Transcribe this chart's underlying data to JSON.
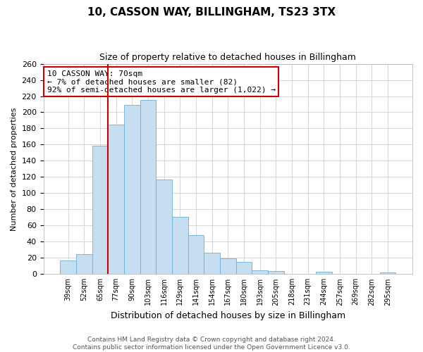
{
  "title": "10, CASSON WAY, BILLINGHAM, TS23 3TX",
  "subtitle": "Size of property relative to detached houses in Billingham",
  "xlabel": "Distribution of detached houses by size in Billingham",
  "ylabel": "Number of detached properties",
  "categories": [
    "39sqm",
    "52sqm",
    "65sqm",
    "77sqm",
    "90sqm",
    "103sqm",
    "116sqm",
    "129sqm",
    "141sqm",
    "154sqm",
    "167sqm",
    "180sqm",
    "193sqm",
    "205sqm",
    "218sqm",
    "231sqm",
    "244sqm",
    "257sqm",
    "269sqm",
    "282sqm",
    "295sqm"
  ],
  "values": [
    17,
    25,
    159,
    185,
    209,
    215,
    117,
    71,
    48,
    26,
    19,
    15,
    5,
    4,
    0,
    0,
    3,
    0,
    0,
    0,
    2
  ],
  "bar_color": "#c5dff0",
  "bar_edge_color": "#6baed6",
  "annotation_box_text": [
    "10 CASSON WAY: 70sqm",
    "← 7% of detached houses are smaller (82)",
    "92% of semi-detached houses are larger (1,022) →"
  ],
  "annotation_box_edge_color": "#cc0000",
  "vline_color": "#cc0000",
  "vline_x_index": 2.5,
  "ylim": [
    0,
    260
  ],
  "yticks": [
    0,
    20,
    40,
    60,
    80,
    100,
    120,
    140,
    160,
    180,
    200,
    220,
    240,
    260
  ],
  "footer_line1": "Contains HM Land Registry data © Crown copyright and database right 2024.",
  "footer_line2": "Contains public sector information licensed under the Open Government Licence v3.0.",
  "background_color": "#ffffff",
  "grid_color": "#d0d0d0",
  "title_fontsize": 11,
  "subtitle_fontsize": 9,
  "ylabel_fontsize": 8,
  "xlabel_fontsize": 9,
  "tick_fontsize": 8,
  "xtick_fontsize": 7,
  "ann_fontsize": 8,
  "footer_fontsize": 6.5
}
